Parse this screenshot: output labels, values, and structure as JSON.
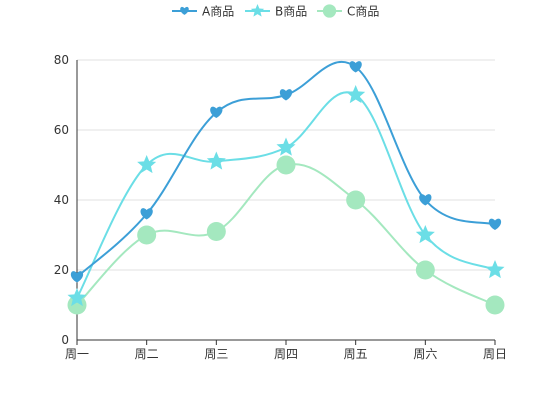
{
  "chart_data": {
    "type": "line",
    "smooth": true,
    "categories": [
      "周一",
      "周二",
      "周三",
      "周四",
      "周五",
      "周六",
      "周日"
    ],
    "ylim": [
      0,
      80
    ],
    "yticks": [
      0,
      20,
      40,
      60,
      80
    ],
    "grid": true,
    "legend_position": "top-center",
    "series": [
      {
        "name": "A商品",
        "values": [
          18,
          36,
          65,
          70,
          78,
          40,
          33
        ],
        "color": "#3c9fd7",
        "marker": "heart"
      },
      {
        "name": "B商品",
        "values": [
          12,
          50,
          51,
          55,
          70,
          30,
          20
        ],
        "color": "#6bdee6",
        "marker": "star"
      },
      {
        "name": "C商品",
        "values": [
          10,
          30,
          31,
          50,
          40,
          20,
          10
        ],
        "color": "#a4e8bf",
        "marker": "circle"
      }
    ]
  }
}
